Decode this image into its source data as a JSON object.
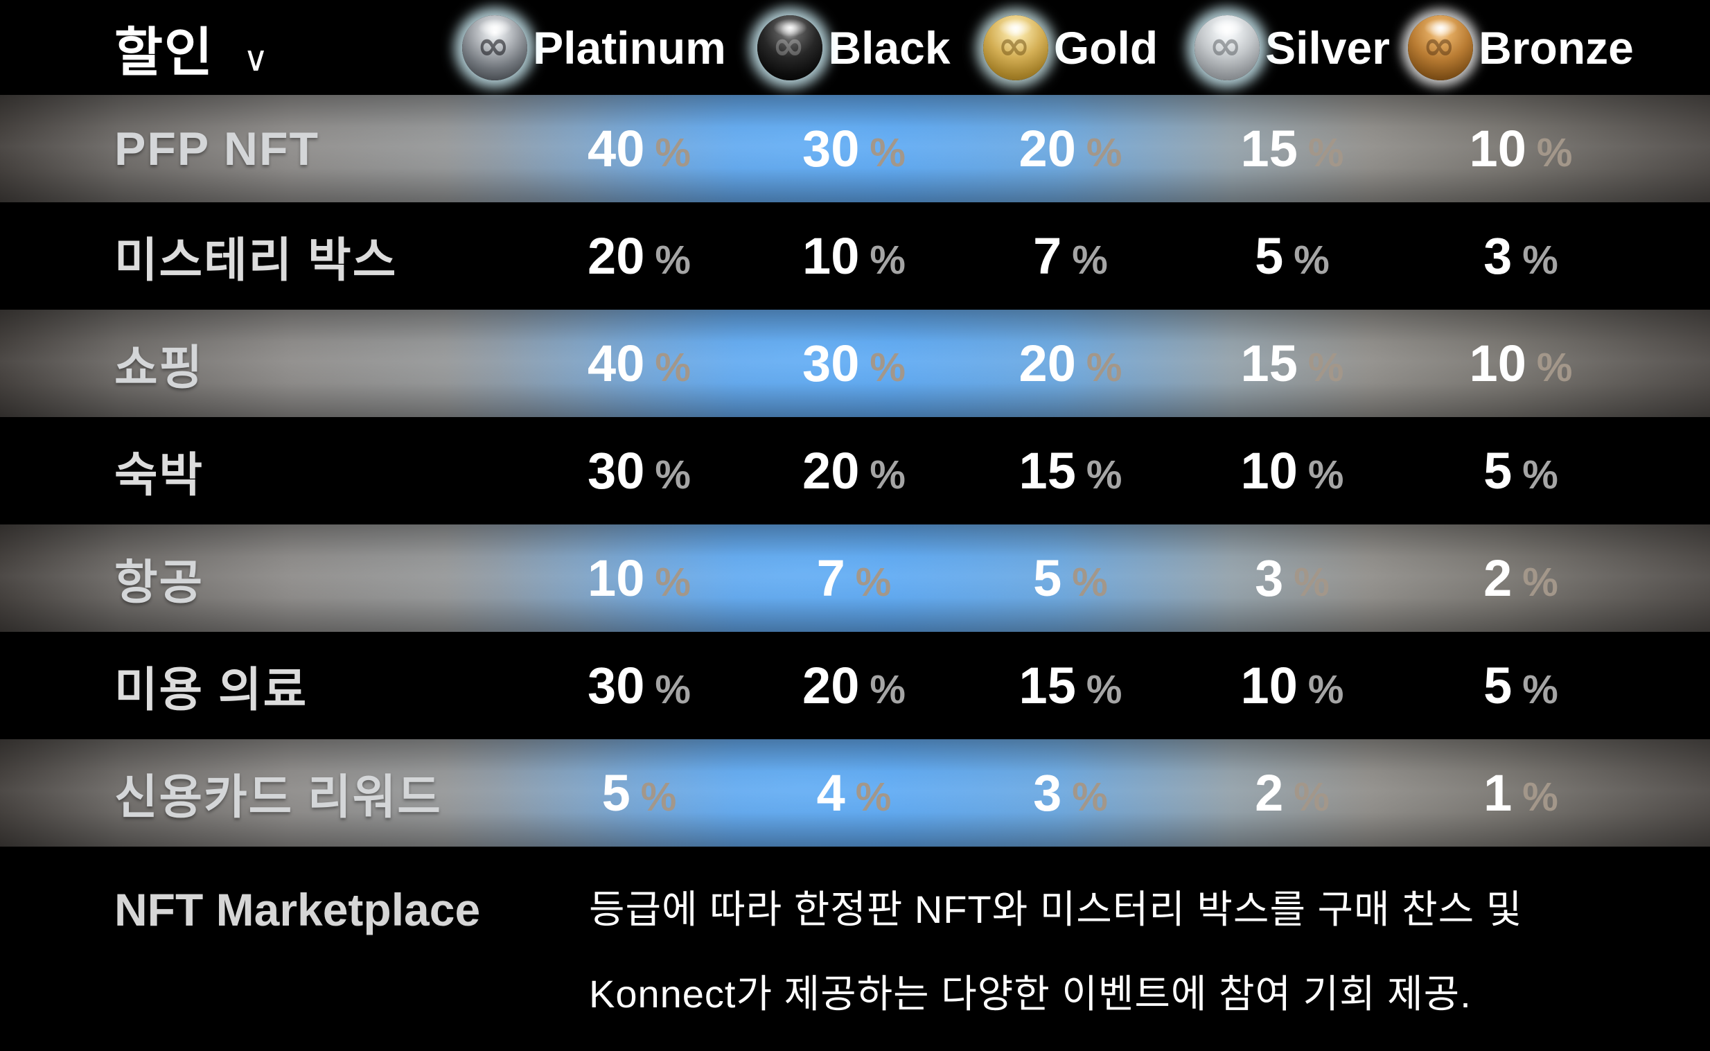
{
  "header": {
    "title": "할인",
    "dropdown_chevron": "∨",
    "tiers": [
      {
        "name": "Platinum",
        "icon": "platinum-sphere-icon"
      },
      {
        "name": "Black",
        "icon": "black-sphere-icon"
      },
      {
        "name": "Gold",
        "icon": "gold-sphere-icon"
      },
      {
        "name": "Silver",
        "icon": "silver-sphere-icon"
      },
      {
        "name": "Bronze",
        "icon": "bronze-sphere-icon"
      }
    ]
  },
  "table": {
    "percent_symbol": "%",
    "rows": [
      {
        "label": "PFP NFT",
        "band": "gradient",
        "values": [
          "40",
          "30",
          "20",
          "15",
          "10"
        ]
      },
      {
        "label": "미스테리 박스",
        "band": "black",
        "values": [
          "20",
          "10",
          "7",
          "5",
          "3"
        ]
      },
      {
        "label": "쇼핑",
        "band": "gradient",
        "values": [
          "40",
          "30",
          "20",
          "15",
          "10"
        ]
      },
      {
        "label": "숙박",
        "band": "black",
        "values": [
          "30",
          "20",
          "15",
          "10",
          "5"
        ]
      },
      {
        "label": "항공",
        "band": "gradient",
        "values": [
          "10",
          "7",
          "5",
          "3",
          "2"
        ]
      },
      {
        "label": "미용 의료",
        "band": "black",
        "values": [
          "30",
          "20",
          "15",
          "10",
          "5"
        ]
      },
      {
        "label": "신용카드 리워드",
        "band": "gradient",
        "values": [
          "5",
          "4",
          "3",
          "2",
          "1"
        ]
      }
    ]
  },
  "footer": {
    "label": "NFT Marketplace",
    "description_lines": [
      "등급에 따라 한정판 NFT와 미스터리 박스를 구매 찬스 및",
      "Konnect가 제공하는 다양한 이벤트에 참여 기회 제공."
    ]
  },
  "colors": {
    "accent_blue": "#5aa3ee",
    "glow_cyan": "#d6f1f7",
    "row_black": "#000000",
    "value_text": "#ffffff",
    "percent_gray_dark_row": "#a5a5a5",
    "percent_gray_gradient_row": "#a3978a",
    "label_gray": "#d6d6d6"
  }
}
